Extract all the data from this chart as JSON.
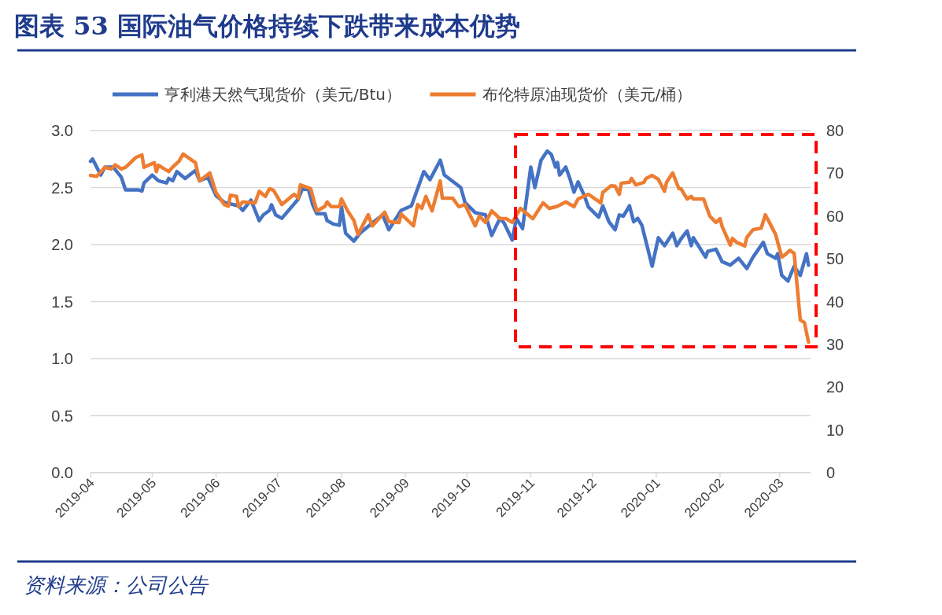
{
  "chart_data": {
    "type": "line",
    "title": "图表 53 国际油气价格持续下跌带来成本优势",
    "annotations": [
      "资料来源：公司公告"
    ],
    "xlim": [
      "2019-04-01",
      "2020-03-16"
    ],
    "xticks": [
      "2019-04",
      "2019-05",
      "2019-06",
      "2019-07",
      "2019-08",
      "2019-09",
      "2019-10",
      "2019-11",
      "2019-12",
      "2020-01",
      "2020-02",
      "2020-03"
    ],
    "ylim": [
      0,
      3
    ],
    "yticks": [
      {
        "value": 0,
        "label": "0.0"
      },
      {
        "value": 0.5,
        "label": "0.5"
      },
      {
        "value": 1,
        "label": "1.0"
      },
      {
        "value": 1.5,
        "label": "1.5"
      },
      {
        "value": 2,
        "label": "2.0"
      },
      {
        "value": 2.5,
        "label": "2.5"
      },
      {
        "value": 3,
        "label": "3.0"
      }
    ],
    "y2lim": [
      0,
      80
    ],
    "y2ticks": [
      0,
      10,
      20,
      30,
      40,
      50,
      60,
      70,
      80
    ],
    "grid": "y",
    "legend": "top",
    "marker": "none",
    "line_style": "solid",
    "series": [
      {
        "name": "亨利港天然气现货价（美元/Btu）",
        "color": "#4472c4",
        "x": [
          "2019-04-01",
          "2019-04-02",
          "2019-04-04",
          "2019-04-06",
          "2019-04-08",
          "2019-04-12",
          "2019-04-16",
          "2019-04-18",
          "2019-04-24",
          "2019-04-26",
          "2019-04-27",
          "2019-05-01",
          "2019-05-04",
          "2019-05-08",
          "2019-05-09",
          "2019-05-11",
          "2019-05-13",
          "2019-05-17",
          "2019-05-22",
          "2019-05-24",
          "2019-05-28",
          "2019-06-01",
          "2019-06-05",
          "2019-06-12",
          "2019-06-14",
          "2019-06-18",
          "2019-06-22",
          "2019-06-24",
          "2019-06-27",
          "2019-06-28",
          "2019-06-30",
          "2019-07-03",
          "2019-07-11",
          "2019-07-13",
          "2019-07-16",
          "2019-07-18",
          "2019-07-20",
          "2019-07-24",
          "2019-07-25",
          "2019-07-28",
          "2019-07-31",
          "2019-08-01",
          "2019-08-03",
          "2019-08-07",
          "2019-08-10",
          "2019-08-16",
          "2019-08-21",
          "2019-08-24",
          "2019-08-30",
          "2019-09-04",
          "2019-09-10",
          "2019-09-13",
          "2019-09-18",
          "2019-09-20",
          "2019-09-28",
          "2019-09-30",
          "2019-10-05",
          "2019-10-10",
          "2019-10-13",
          "2019-10-17",
          "2019-10-19",
          "2019-10-23",
          "2019-10-25",
          "2019-10-28",
          "2019-11-01",
          "2019-11-03",
          "2019-11-06",
          "2019-11-09",
          "2019-11-11",
          "2019-11-13",
          "2019-11-14",
          "2019-11-15",
          "2019-11-18",
          "2019-11-20",
          "2019-11-22",
          "2019-11-24",
          "2019-11-27",
          "2019-11-29",
          "2019-12-04",
          "2019-12-06",
          "2019-12-09",
          "2019-12-12",
          "2019-12-14",
          "2019-12-16",
          "2019-12-19",
          "2019-12-21",
          "2019-12-23",
          "2019-12-25",
          "2019-12-30",
          "2020-01-02",
          "2020-01-05",
          "2020-01-09",
          "2020-01-11",
          "2020-01-13",
          "2020-01-16",
          "2020-01-18",
          "2020-01-19",
          "2020-01-25",
          "2020-01-26",
          "2020-01-30",
          "2020-02-02",
          "2020-02-06",
          "2020-02-10",
          "2020-02-14",
          "2020-02-17",
          "2020-02-22",
          "2020-02-24",
          "2020-02-28",
          "2020-02-29",
          "2020-03-02",
          "2020-03-05",
          "2020-03-08",
          "2020-03-11",
          "2020-03-14",
          "2020-03-15"
        ],
        "values": [
          2.73,
          2.75,
          2.68,
          2.61,
          2.68,
          2.68,
          2.59,
          2.48,
          2.48,
          2.47,
          2.54,
          2.61,
          2.56,
          2.54,
          2.58,
          2.56,
          2.64,
          2.58,
          2.65,
          2.56,
          2.59,
          2.43,
          2.37,
          2.34,
          2.3,
          2.39,
          2.21,
          2.26,
          2.3,
          2.35,
          2.26,
          2.23,
          2.4,
          2.49,
          2.48,
          2.35,
          2.27,
          2.27,
          2.21,
          2.18,
          2.17,
          2.33,
          2.1,
          2.03,
          2.1,
          2.19,
          2.26,
          2.13,
          2.3,
          2.34,
          2.64,
          2.57,
          2.74,
          2.61,
          2.5,
          2.37,
          2.28,
          2.26,
          2.08,
          2.23,
          2.19,
          2.04,
          2.23,
          2.14,
          2.68,
          2.5,
          2.74,
          2.82,
          2.79,
          2.68,
          2.72,
          2.61,
          2.68,
          2.58,
          2.46,
          2.55,
          2.43,
          2.33,
          2.24,
          2.34,
          2.2,
          2.13,
          2.26,
          2.25,
          2.34,
          2.2,
          2.23,
          2.17,
          1.81,
          2.06,
          1.99,
          2.1,
          1.99,
          2.05,
          2.12,
          1.99,
          2.06,
          1.89,
          1.94,
          1.96,
          1.85,
          1.82,
          1.88,
          1.79,
          1.89,
          2.02,
          1.92,
          1.88,
          1.92,
          1.73,
          1.68,
          1.81,
          1.73,
          1.92,
          1.82
        ]
      },
      {
        "name": "布伦特原油现货价（美元/桶）",
        "color": "#ed7d31",
        "axis": "y2",
        "x": [
          "2019-04-01",
          "2019-04-04",
          "2019-04-08",
          "2019-04-11",
          "2019-04-13",
          "2019-04-16",
          "2019-04-18",
          "2019-04-23",
          "2019-04-26",
          "2019-04-27",
          "2019-05-02",
          "2019-05-03",
          "2019-05-04",
          "2019-05-09",
          "2019-05-11",
          "2019-05-14",
          "2019-05-16",
          "2019-05-22",
          "2019-05-24",
          "2019-05-29",
          "2019-06-01",
          "2019-06-05",
          "2019-06-07",
          "2019-06-08",
          "2019-06-11",
          "2019-06-12",
          "2019-06-14",
          "2019-06-20",
          "2019-06-22",
          "2019-06-25",
          "2019-06-27",
          "2019-06-29",
          "2019-07-03",
          "2019-07-09",
          "2019-07-11",
          "2019-07-12",
          "2019-07-17",
          "2019-07-20",
          "2019-07-24",
          "2019-07-25",
          "2019-07-27",
          "2019-07-31",
          "2019-08-01",
          "2019-08-04",
          "2019-08-07",
          "2019-08-09",
          "2019-08-14",
          "2019-08-16",
          "2019-08-22",
          "2019-08-24",
          "2019-08-29",
          "2019-08-30",
          "2019-09-05",
          "2019-09-07",
          "2019-09-09",
          "2019-09-11",
          "2019-09-14",
          "2019-09-18",
          "2019-09-19",
          "2019-09-24",
          "2019-09-27",
          "2019-09-30",
          "2019-10-05",
          "2019-10-07",
          "2019-10-10",
          "2019-10-13",
          "2019-10-17",
          "2019-10-20",
          "2019-10-23",
          "2019-10-27",
          "2019-11-02",
          "2019-11-07",
          "2019-11-10",
          "2019-11-14",
          "2019-11-18",
          "2019-11-22",
          "2019-11-24",
          "2019-11-29",
          "2019-12-05",
          "2019-12-06",
          "2019-12-10",
          "2019-12-12",
          "2019-12-14",
          "2019-12-15",
          "2019-12-19",
          "2019-12-20",
          "2019-12-22",
          "2019-12-26",
          "2019-12-27",
          "2019-12-30",
          "2020-01-02",
          "2020-01-05",
          "2020-01-06",
          "2020-01-09",
          "2020-01-12",
          "2020-01-13",
          "2020-01-16",
          "2020-01-18",
          "2020-01-19",
          "2020-01-24",
          "2020-01-27",
          "2020-01-30",
          "2020-02-01",
          "2020-02-02",
          "2020-02-06",
          "2020-02-07",
          "2020-02-09",
          "2020-02-13",
          "2020-02-14",
          "2020-02-17",
          "2020-02-21",
          "2020-02-23",
          "2020-02-25",
          "2020-02-28",
          "2020-03-02",
          "2020-03-04",
          "2020-03-06",
          "2020-03-08",
          "2020-03-11",
          "2020-03-13",
          "2020-03-15"
        ],
        "values": [
          69.5,
          69.3,
          71.4,
          71.0,
          72.0,
          71.0,
          71.4,
          73.7,
          74.3,
          71.4,
          72.5,
          70.4,
          71.9,
          70.4,
          71.5,
          72.8,
          74.5,
          72.5,
          68.2,
          70.1,
          65.5,
          62.7,
          62.3,
          64.9,
          64.6,
          62.2,
          63.3,
          63.1,
          65.8,
          64.6,
          66.4,
          66.0,
          62.7,
          65.1,
          64.2,
          67.3,
          66.4,
          61.2,
          62.3,
          63.3,
          62.2,
          62.2,
          64.0,
          61.2,
          59.0,
          55.7,
          60.3,
          57.7,
          60.9,
          58.7,
          58.5,
          60.5,
          57.7,
          62.7,
          61.8,
          64.6,
          61.2,
          68.2,
          64.2,
          64.2,
          62.2,
          62.7,
          57.7,
          60.0,
          58.5,
          61.2,
          59.4,
          59.4,
          58.5,
          61.8,
          59.4,
          63.1,
          61.8,
          62.3,
          63.3,
          62.2,
          64.0,
          65.1,
          63.1,
          65.5,
          67.1,
          67.0,
          65.1,
          67.7,
          67.9,
          68.8,
          67.3,
          67.9,
          68.8,
          69.5,
          68.6,
          65.8,
          67.9,
          70.1,
          66.4,
          66.4,
          64.0,
          64.6,
          64.0,
          64.0,
          60.0,
          58.5,
          59.4,
          57.6,
          53.2,
          54.8,
          53.9,
          53.0,
          55.0,
          56.8,
          57.2,
          60.3,
          58.5,
          55.7,
          50.4,
          51.1,
          52.0,
          51.3,
          35.7,
          35.1,
          30.5
        ]
      }
    ]
  }
}
